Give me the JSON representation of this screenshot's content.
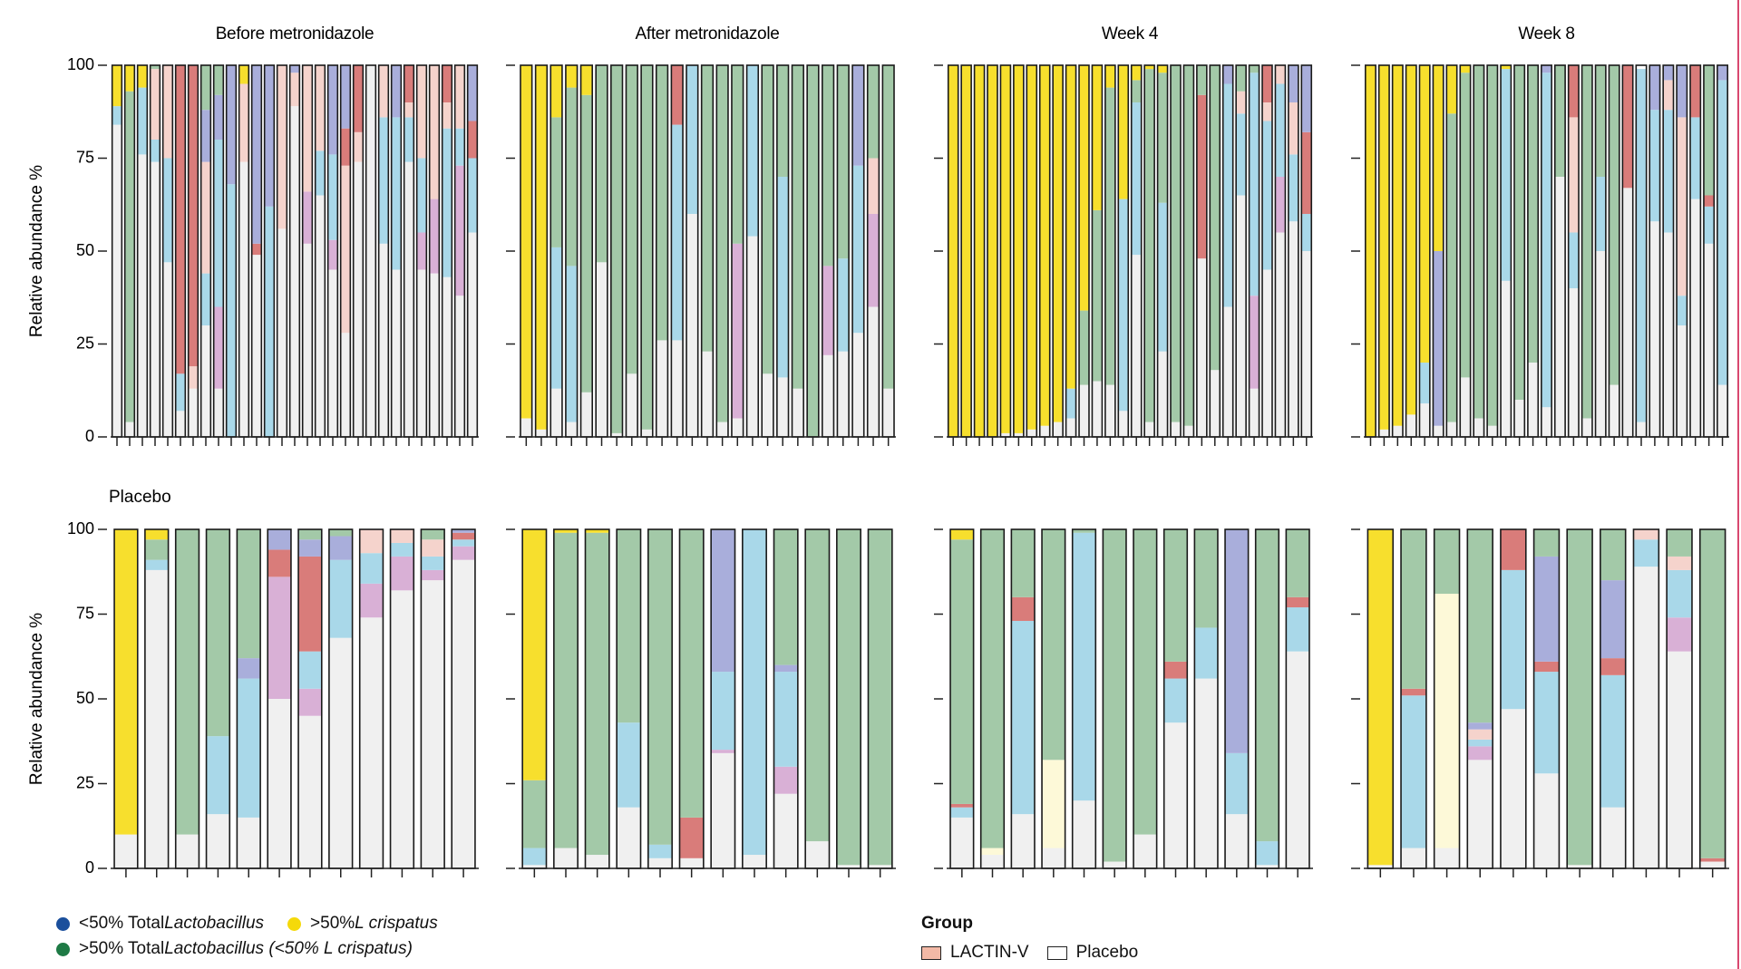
{
  "figure": {
    "top_group_label": "LACTIN-V",
    "bottom_group_label": "Placebo",
    "ylabel": "Relative abundance %"
  },
  "legends": {
    "status": [
      {
        "color": "#1b4f9c",
        "prefix": "<50% Total ",
        "italic": "Lactobacillus",
        "suffix": ""
      },
      {
        "color": "#f5d90a",
        "prefix": ">50% ",
        "italic": "L crispatus",
        "suffix": ""
      },
      {
        "color": "#1e7a45",
        "prefix": ">50% Total ",
        "italic": "Lactobacillus (<50% L crispatus)",
        "suffix": ""
      }
    ],
    "group": {
      "heading": "Group",
      "items": [
        {
          "label": "LACTIN-V",
          "color": "#f3b9a6"
        },
        {
          "label": "Placebo",
          "color": "#ffffff"
        }
      ]
    }
  },
  "taxa_colors": {
    "crispatus": "#f7df2d",
    "iners": "#a3c9a8",
    "gasseri": "#a9d8e9",
    "jensenii": "#a9aedb",
    "gardnerella": "#d97c7a",
    "other_lacto": "#d9b0d6",
    "bvab": "#f5d3cc",
    "minor": "#fdf9d8",
    "other": "#f0f0f0"
  },
  "chart_data": [
    {
      "type": "stacked-bar",
      "group": "LACTIN-V",
      "title": "Before metronidazole",
      "ylim": [
        0,
        100
      ],
      "yticks": [
        0,
        25,
        50,
        75,
        100
      ],
      "bars": [
        {
          "other": 84,
          "gasseri": 5,
          "crispatus": 11
        },
        {
          "other": 4,
          "iners": 89,
          "crispatus": 7
        },
        {
          "other": 76,
          "gasseri": 18,
          "crispatus": 6
        },
        {
          "other": 74,
          "gasseri": 6,
          "bvab": 19,
          "iners": 1
        },
        {
          "other": 47,
          "gasseri": 28,
          "bvab": 25
        },
        {
          "other": 7,
          "gasseri": 10,
          "gardnerella": 83
        },
        {
          "other": 13,
          "gardnerella": 81,
          "bvab": 6
        },
        {
          "other": 30,
          "gasseri": 14,
          "bvab": 30,
          "jensenii": 14,
          "iners": 12
        },
        {
          "other": 13,
          "other_lacto": 22,
          "gasseri": 45,
          "jensenii": 12,
          "iners": 8
        },
        {
          "other": 0,
          "gasseri": 68,
          "jensenii": 32
        },
        {
          "other": 74,
          "bvab": 21,
          "crispatus": 5
        },
        {
          "other": 49,
          "jensenii": 48,
          "gardnerella": 3
        },
        {
          "other": 0,
          "gasseri": 62,
          "jensenii": 38
        },
        {
          "other": 56,
          "bvab": 44
        },
        {
          "other": 89,
          "bvab": 9,
          "jensenii": 2
        },
        {
          "other": 52,
          "other_lacto": 14,
          "bvab": 34
        },
        {
          "other": 65,
          "gasseri": 12,
          "bvab": 23
        },
        {
          "other": 45,
          "other_lacto": 8,
          "gasseri": 23,
          "jensenii": 24
        },
        {
          "other": 28,
          "bvab": 45,
          "gardnerella": 10,
          "jensenii": 17
        },
        {
          "other": 74,
          "gardnerella": 18,
          "bvab": 8
        },
        {
          "other": 100
        },
        {
          "other": 52,
          "gasseri": 34,
          "bvab": 14
        },
        {
          "other": 45,
          "gasseri": 41,
          "jensenii": 14
        },
        {
          "other": 74,
          "gasseri": 12,
          "gardnerella": 10,
          "bvab": 4
        },
        {
          "other": 45,
          "other_lacto": 10,
          "gasseri": 20,
          "bvab": 25
        },
        {
          "other": 44,
          "other_lacto": 20,
          "bvab": 36
        },
        {
          "other": 43,
          "gasseri": 40,
          "gardnerella": 10,
          "bvab": 7
        },
        {
          "other": 38,
          "other_lacto": 35,
          "gasseri": 10,
          "bvab": 17
        },
        {
          "other": 55,
          "gasseri": 20,
          "gardnerella": 10,
          "jensenii": 15
        }
      ]
    },
    {
      "type": "stacked-bar",
      "group": "LACTIN-V",
      "title": "After metronidazole",
      "ylim": [
        0,
        100
      ],
      "yticks": [
        0,
        25,
        50,
        75,
        100
      ],
      "bars": [
        {
          "other": 5,
          "crispatus": 95
        },
        {
          "other": 2,
          "crispatus": 98
        },
        {
          "other": 13,
          "iners": 35,
          "gasseri": 38,
          "crispatus": 14
        },
        {
          "other": 4,
          "iners": 48,
          "gasseri": 42,
          "crispatus": 6
        },
        {
          "other": 12,
          "iners": 80,
          "crispatus": 8
        },
        {
          "other": 47,
          "iners": 53
        },
        {
          "other": 1,
          "iners": 99
        },
        {
          "other": 17,
          "iners": 83
        },
        {
          "other": 2,
          "iners": 98
        },
        {
          "other": 26,
          "iners": 74
        },
        {
          "other": 26,
          "gasseri": 58,
          "gardnerella": 16
        },
        {
          "other": 60,
          "gasseri": 40
        },
        {
          "other": 23,
          "iners": 77
        },
        {
          "other": 4,
          "iners": 96
        },
        {
          "other": 5,
          "other_lacto": 47,
          "iners": 48
        },
        {
          "other": 54,
          "gasseri": 46
        },
        {
          "other": 17,
          "iners": 83
        },
        {
          "other": 16,
          "gasseri": 54,
          "iners": 30
        },
        {
          "other": 13,
          "iners": 87
        },
        {
          "other": 0,
          "iners": 100
        },
        {
          "other": 22,
          "other_lacto": 24,
          "iners": 54
        },
        {
          "other": 23,
          "gasseri": 25,
          "iners": 52
        },
        {
          "other": 28,
          "gasseri": 45,
          "jensenii": 27
        },
        {
          "other": 35,
          "other_lacto": 25,
          "bvab": 15,
          "iners": 25
        },
        {
          "other": 13,
          "iners": 87
        }
      ]
    },
    {
      "type": "stacked-bar",
      "group": "LACTIN-V",
      "title": "Week 4",
      "ylim": [
        0,
        100
      ],
      "yticks": [
        0,
        25,
        50,
        75,
        100
      ],
      "bars": [
        {
          "other": 0,
          "crispatus": 100
        },
        {
          "other": 0,
          "crispatus": 100
        },
        {
          "other": 0,
          "crispatus": 100
        },
        {
          "other": 0,
          "crispatus": 100
        },
        {
          "other": 1,
          "crispatus": 99
        },
        {
          "other": 1,
          "crispatus": 99
        },
        {
          "other": 2,
          "crispatus": 98
        },
        {
          "other": 3,
          "crispatus": 97
        },
        {
          "other": 4,
          "crispatus": 96
        },
        {
          "other": 5,
          "gasseri": 8,
          "crispatus": 87
        },
        {
          "other": 14,
          "iners": 20,
          "crispatus": 66
        },
        {
          "other": 15,
          "iners": 46,
          "crispatus": 39
        },
        {
          "other": 14,
          "iners": 80,
          "crispatus": 6
        },
        {
          "other": 7,
          "gasseri": 57,
          "crispatus": 36
        },
        {
          "other": 49,
          "gasseri": 41,
          "iners": 6,
          "crispatus": 4
        },
        {
          "other": 4,
          "iners": 95,
          "crispatus": 1
        },
        {
          "other": 23,
          "gasseri": 40,
          "iners": 35,
          "crispatus": 2
        },
        {
          "other": 4,
          "iners": 96
        },
        {
          "other": 3,
          "iners": 97
        },
        {
          "other": 48,
          "gardnerella": 44,
          "iners": 8
        },
        {
          "other": 18,
          "iners": 82
        },
        {
          "other": 35,
          "gasseri": 60,
          "jensenii": 5
        },
        {
          "other": 65,
          "gasseri": 22,
          "bvab": 6,
          "iners": 7
        },
        {
          "other": 13,
          "gasseri": 60,
          "other_lacto": 25,
          "iners": 2
        },
        {
          "other": 45,
          "gasseri": 40,
          "gardnerella": 10,
          "bvab": 5
        },
        {
          "other": 55,
          "gasseri": 25,
          "other_lacto": 15,
          "bvab": 5
        },
        {
          "other": 58,
          "gasseri": 18,
          "bvab": 14,
          "jensenii": 10
        },
        {
          "other": 50,
          "gasseri": 10,
          "gardnerella": 22,
          "jensenii": 18
        }
      ]
    },
    {
      "type": "stacked-bar",
      "group": "LACTIN-V",
      "title": "Week 8",
      "ylim": [
        0,
        100
      ],
      "yticks": [
        0,
        25,
        50,
        75,
        100
      ],
      "bars": [
        {
          "other": 0,
          "crispatus": 100
        },
        {
          "other": 2,
          "crispatus": 98
        },
        {
          "other": 3,
          "crispatus": 97
        },
        {
          "other": 6,
          "crispatus": 94
        },
        {
          "other": 9,
          "gasseri": 11,
          "crispatus": 80
        },
        {
          "other": 3,
          "jensenii": 47,
          "crispatus": 50
        },
        {
          "other": 4,
          "iners": 83,
          "crispatus": 13
        },
        {
          "other": 16,
          "iners": 82,
          "crispatus": 2
        },
        {
          "other": 5,
          "iners": 95
        },
        {
          "other": 3,
          "iners": 97
        },
        {
          "other": 42,
          "gasseri": 57,
          "crispatus": 1
        },
        {
          "other": 10,
          "iners": 90
        },
        {
          "other": 20,
          "iners": 80
        },
        {
          "other": 8,
          "gasseri": 90,
          "jensenii": 2
        },
        {
          "other": 70,
          "iners": 30
        },
        {
          "other": 40,
          "gasseri": 15,
          "gardnerella": 14,
          "bvab": 31
        },
        {
          "other": 5,
          "iners": 95
        },
        {
          "other": 50,
          "gasseri": 20,
          "iners": 30
        },
        {
          "other": 14,
          "iners": 86
        },
        {
          "other": 67,
          "gardnerella": 33
        },
        {
          "other": 4,
          "gasseri": 95
        },
        {
          "other": 58,
          "gasseri": 30,
          "jensenii": 12
        },
        {
          "other": 55,
          "gasseri": 33,
          "bvab": 8,
          "jensenii": 4
        },
        {
          "other": 30,
          "gasseri": 8,
          "bvab": 48,
          "jensenii": 14
        },
        {
          "other": 64,
          "gasseri": 22,
          "gardnerella": 14
        },
        {
          "other": 52,
          "gardnerella": 3,
          "gasseri": 10,
          "iners": 35
        },
        {
          "other": 14,
          "gasseri": 82,
          "jensenii": 4
        }
      ]
    },
    {
      "type": "stacked-bar",
      "group": "Placebo",
      "title": "Before metronidazole",
      "ylim": [
        0,
        100
      ],
      "yticks": [
        0,
        25,
        50,
        75,
        100
      ],
      "bars": [
        {
          "other": 10,
          "crispatus": 90
        },
        {
          "other": 88,
          "gasseri": 3,
          "iners": 6,
          "crispatus": 3
        },
        {
          "other": 10,
          "iners": 90
        },
        {
          "other": 16,
          "gasseri": 23,
          "iners": 61
        },
        {
          "other": 15,
          "gasseri": 41,
          "jensenii": 6,
          "iners": 38
        },
        {
          "other": 50,
          "other_lacto": 36,
          "gardnerella": 8,
          "jensenii": 6
        },
        {
          "other": 45,
          "other_lacto": 8,
          "gasseri": 11,
          "gardnerella": 28,
          "jensenii": 5,
          "iners": 3
        },
        {
          "other": 68,
          "gasseri": 23,
          "jensenii": 7,
          "iners": 2
        },
        {
          "other": 74,
          "other_lacto": 10,
          "gasseri": 9,
          "bvab": 7
        },
        {
          "other": 82,
          "other_lacto": 10,
          "gasseri": 4,
          "bvab": 4
        },
        {
          "other": 85,
          "other_lacto": 3,
          "gasseri": 4,
          "bvab": 5,
          "iners": 3
        },
        {
          "other": 91,
          "other_lacto": 4,
          "gasseri": 2,
          "jensenii": 1,
          "gardnerella": 2
        }
      ]
    },
    {
      "type": "stacked-bar",
      "group": "Placebo",
      "title": "After metronidazole",
      "ylim": [
        0,
        100
      ],
      "yticks": [
        0,
        25,
        50,
        75,
        100
      ],
      "bars": [
        {
          "other": 1,
          "gasseri": 5,
          "iners": 20,
          "crispatus": 74
        },
        {
          "other": 6,
          "iners": 93,
          "crispatus": 1
        },
        {
          "other": 4,
          "iners": 95,
          "crispatus": 1
        },
        {
          "other": 18,
          "gasseri": 25,
          "iners": 57
        },
        {
          "other": 3,
          "gasseri": 4,
          "iners": 93
        },
        {
          "other": 3,
          "gardnerella": 12,
          "iners": 85
        },
        {
          "other": 34,
          "other_lacto": 1,
          "gasseri": 23,
          "jensenii": 42
        },
        {
          "other": 4,
          "gasseri": 96
        },
        {
          "other": 22,
          "other_lacto": 8,
          "gasseri": 28,
          "jensenii": 2,
          "iners": 40
        },
        {
          "other": 8,
          "iners": 92
        },
        {
          "other": 1,
          "iners": 99
        },
        {
          "other": 1,
          "iners": 99
        }
      ]
    },
    {
      "type": "stacked-bar",
      "group": "Placebo",
      "title": "Week 4",
      "ylim": [
        0,
        100
      ],
      "yticks": [
        0,
        25,
        50,
        75,
        100
      ],
      "bars": [
        {
          "other": 15,
          "gasseri": 3,
          "gardnerella": 1,
          "iners": 78,
          "crispatus": 3
        },
        {
          "other": 4,
          "minor": 2,
          "iners": 94
        },
        {
          "other": 16,
          "gasseri": 57,
          "gardnerella": 7,
          "iners": 20
        },
        {
          "other": 6,
          "minor": 26,
          "iners": 68
        },
        {
          "other": 20,
          "gasseri": 79,
          "iners": 1
        },
        {
          "other": 2,
          "iners": 98
        },
        {
          "other": 10,
          "iners": 90
        },
        {
          "other": 43,
          "gasseri": 13,
          "gardnerella": 5,
          "iners": 39
        },
        {
          "other": 56,
          "gasseri": 15,
          "iners": 29
        },
        {
          "other": 16,
          "gasseri": 18,
          "jensenii": 66
        },
        {
          "other": 1,
          "gasseri": 7,
          "iners": 92
        },
        {
          "other": 64,
          "gasseri": 13,
          "gardnerella": 3,
          "iners": 20
        }
      ]
    },
    {
      "type": "stacked-bar",
      "group": "Placebo",
      "title": "Week 8",
      "ylim": [
        0,
        100
      ],
      "yticks": [
        0,
        25,
        50,
        75,
        100
      ],
      "bars": [
        {
          "other": 1,
          "crispatus": 99
        },
        {
          "other": 6,
          "gasseri": 45,
          "gardnerella": 2,
          "iners": 47
        },
        {
          "other": 6,
          "minor": 75,
          "iners": 19
        },
        {
          "other": 32,
          "other_lacto": 4,
          "gasseri": 2,
          "bvab": 3,
          "jensenii": 2,
          "iners": 57
        },
        {
          "other": 47,
          "gasseri": 41,
          "gardnerella": 12
        },
        {
          "other": 28,
          "gasseri": 30,
          "gardnerella": 3,
          "jensenii": 31,
          "iners": 8
        },
        {
          "other": 1,
          "iners": 99
        },
        {
          "other": 18,
          "gasseri": 39,
          "gardnerella": 5,
          "jensenii": 23,
          "iners": 15
        },
        {
          "other": 89,
          "gasseri": 8,
          "bvab": 3
        },
        {
          "other": 64,
          "other_lacto": 10,
          "gasseri": 14,
          "bvab": 4,
          "iners": 8
        },
        {
          "other": 2,
          "gardnerella": 1,
          "iners": 97
        }
      ]
    }
  ]
}
